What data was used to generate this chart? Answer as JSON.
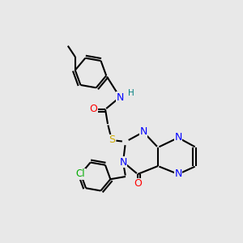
{
  "bg_color": "#e8e8e8",
  "bond_color": "#000000",
  "bond_lw": 1.5,
  "atom_colors": {
    "N": "#0000ff",
    "O": "#ff0000",
    "S": "#ccaa00",
    "Cl": "#00aa00",
    "H": "#008080",
    "C": "#000000"
  },
  "font_size": 8.5
}
